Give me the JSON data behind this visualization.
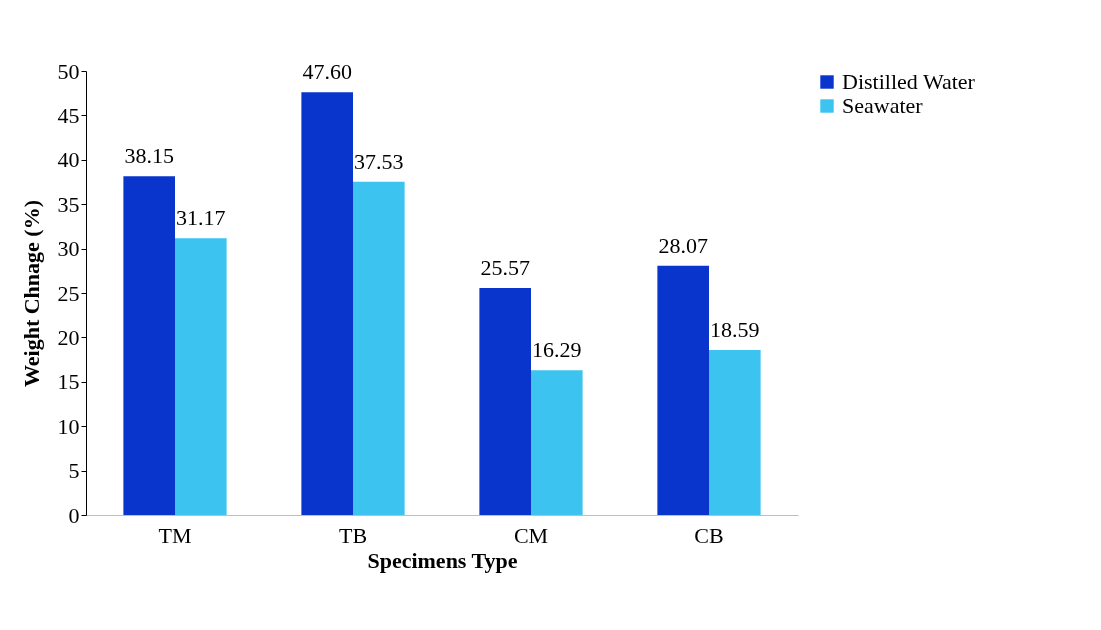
{
  "chart_data": {
    "type": "bar",
    "xlabel": "Specimens Type",
    "ylabel": "Weight Chnage (%)",
    "categories": [
      "TM",
      "TB",
      "CM",
      "CB"
    ],
    "series": [
      {
        "name": "Distilled Water",
        "color": "#0a35cc",
        "values": [
          38.15,
          47.6,
          25.57,
          28.07
        ]
      },
      {
        "name": "Seawater",
        "color": "#3cc3f0",
        "values": [
          31.17,
          37.53,
          16.29,
          18.59
        ]
      }
    ],
    "value_labels": [
      [
        "38.15",
        "47.60",
        "25.57",
        "28.07"
      ],
      [
        "31.17",
        "37.53",
        "16.29",
        "18.59"
      ]
    ],
    "ylim": [
      0,
      50
    ],
    "yticks": [
      0,
      5,
      10,
      15,
      20,
      25,
      30,
      35,
      40,
      45,
      50
    ],
    "grid": false,
    "legend": "right"
  }
}
